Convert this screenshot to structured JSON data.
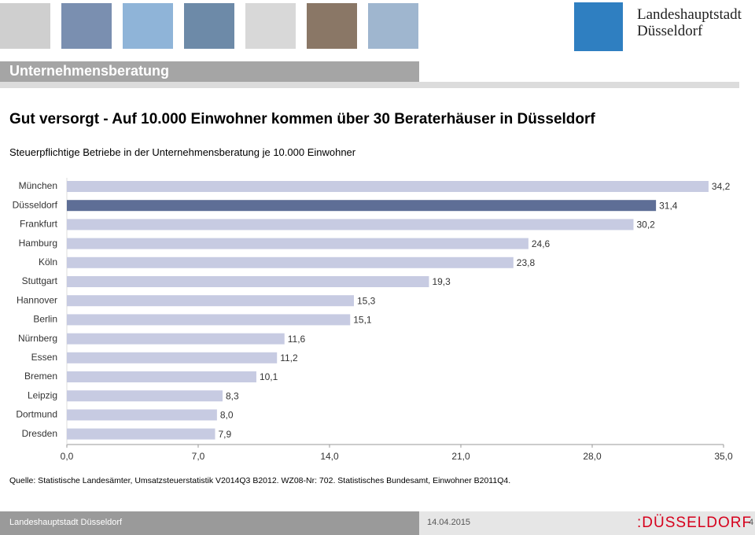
{
  "header": {
    "section": "Unternehmensberatung",
    "logo_line1": "Landeshauptstadt",
    "logo_line2": "Düsseldorf"
  },
  "chart_data": {
    "type": "hbar",
    "title": "Gut versorgt - Auf 10.000 Einwohner kommen über 30 Beraterhäuser in Düsseldorf",
    "subtitle": "Steuerpflichtige Betriebe in der Unternehmensberatung je 10.000 Einwohner",
    "categories": [
      "München",
      "Düsseldorf",
      "Frankfurt",
      "Hamburg",
      "Köln",
      "Stuttgart",
      "Hannover",
      "Berlin",
      "Nürnberg",
      "Essen",
      "Bremen",
      "Leipzig",
      "Dortmund",
      "Dresden"
    ],
    "values": [
      34.2,
      31.4,
      30.2,
      24.6,
      23.8,
      19.3,
      15.3,
      15.1,
      11.6,
      11.2,
      10.1,
      8.3,
      8.0,
      7.9
    ],
    "value_labels": [
      "34,2",
      "31,4",
      "30,2",
      "24,6",
      "23,8",
      "19,3",
      "15,3",
      "15,1",
      "11,6",
      "11,2",
      "10,1",
      "8,3",
      "8,0",
      "7,9"
    ],
    "colors": [
      "#c7cbe2",
      "#5e6e96",
      "#c7cbe2",
      "#c7cbe2",
      "#c7cbe2",
      "#c7cbe2",
      "#c7cbe2",
      "#c7cbe2",
      "#c7cbe2",
      "#c7cbe2",
      "#c7cbe2",
      "#c7cbe2",
      "#c7cbe2",
      "#c7cbe2"
    ],
    "xlim": [
      0,
      35
    ],
    "xticks": [
      {
        "value": 0,
        "label": "0,0"
      },
      {
        "value": 7,
        "label": "7,0"
      },
      {
        "value": 14,
        "label": "14,0"
      },
      {
        "value": 21,
        "label": "21,0"
      },
      {
        "value": 28,
        "label": "28,0"
      },
      {
        "value": 35,
        "label": "35,0"
      }
    ],
    "source": "Quelle: Statistische Landesämter, Umsatzsteuerstatistik V2014Q3 B2012. WZ08-Nr: 702. Statistisches Bundesamt, Einwohner B2011Q4."
  },
  "footer": {
    "organisation": "Landeshauptstadt Düsseldorf",
    "date": "14.04.2015",
    "logo": ":DÜSSELDORF",
    "page": "4"
  }
}
